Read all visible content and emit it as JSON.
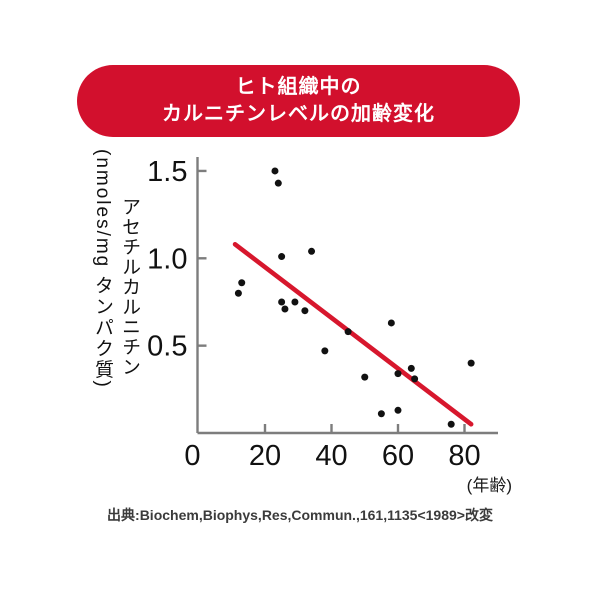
{
  "banner": {
    "line1": "ヒト組織中の",
    "line2": "カルニチンレベルの加齢変化",
    "bg_color": "#d2102d",
    "text_color": "#ffffff"
  },
  "chart_data": {
    "type": "scatter",
    "title": "ヒト組織中のカルニチンレベルの加齢変化",
    "xlabel": "(年齢)",
    "ylabel_main": "アセチルカルニチン",
    "ylabel_unit": "(nmoles/mg タンパク質)",
    "x_ticks": [
      "0",
      "20",
      "40",
      "60",
      "80"
    ],
    "y_ticks": [
      "0.5",
      "1.0",
      "1.5"
    ],
    "xlim": [
      0,
      90
    ],
    "ylim": [
      0,
      1.58
    ],
    "grid": false,
    "legend": "none",
    "points": [
      {
        "age": 23,
        "value": 1.5
      },
      {
        "age": 24,
        "value": 1.43
      },
      {
        "age": 25,
        "value": 1.01
      },
      {
        "age": 34,
        "value": 1.04
      },
      {
        "age": 13,
        "value": 0.86
      },
      {
        "age": 12,
        "value": 0.8
      },
      {
        "age": 25,
        "value": 0.75
      },
      {
        "age": 29,
        "value": 0.75
      },
      {
        "age": 26,
        "value": 0.71
      },
      {
        "age": 32,
        "value": 0.7
      },
      {
        "age": 45,
        "value": 0.58
      },
      {
        "age": 58,
        "value": 0.63
      },
      {
        "age": 38,
        "value": 0.47
      },
      {
        "age": 50,
        "value": 0.32
      },
      {
        "age": 60,
        "value": 0.34
      },
      {
        "age": 64,
        "value": 0.37
      },
      {
        "age": 65,
        "value": 0.31
      },
      {
        "age": 82,
        "value": 0.4
      },
      {
        "age": 55,
        "value": 0.11
      },
      {
        "age": 60,
        "value": 0.13
      },
      {
        "age": 76,
        "value": 0.05
      }
    ],
    "trend_line": {
      "x1": 11,
      "y1": 1.08,
      "x2": 82,
      "y2": 0.05
    },
    "point_color": "#111111",
    "trend_color": "#d7172d",
    "axis_color": "#7d7d7d",
    "tick_label_color": "#111111"
  },
  "footer": {
    "citation": "出典:Biochem,Biophys,Res,Commun.,161,1135<1989>改変"
  }
}
